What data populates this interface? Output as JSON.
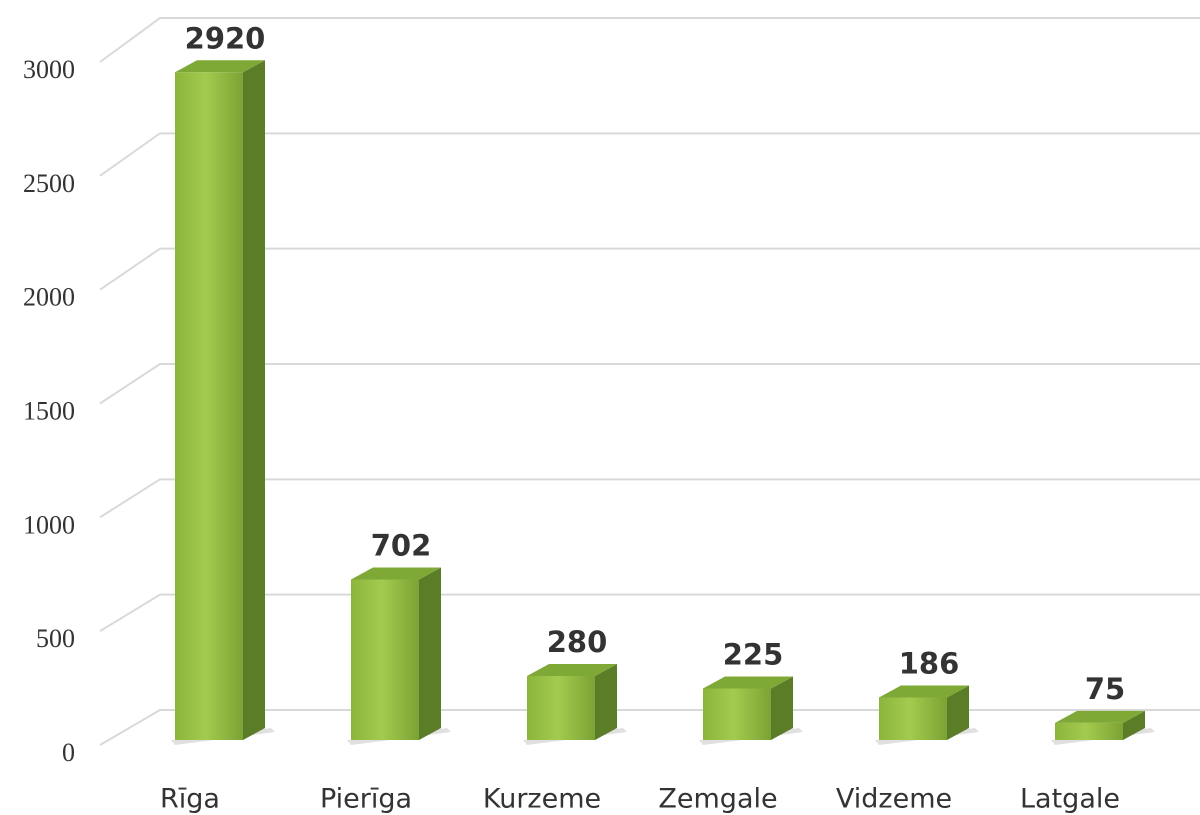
{
  "chart_data": {
    "type": "bar3d",
    "categories": [
      "Rīga",
      "Pierīga",
      "Kurzeme",
      "Zemgale",
      "Vidzeme",
      "Latgale"
    ],
    "values": [
      2920,
      702,
      280,
      225,
      186,
      75
    ],
    "color": "#8cb83f",
    "ylim": [
      0,
      3000
    ],
    "yticks": [
      0,
      500,
      1000,
      1500,
      2000,
      2500,
      3000
    ],
    "grid": true
  }
}
